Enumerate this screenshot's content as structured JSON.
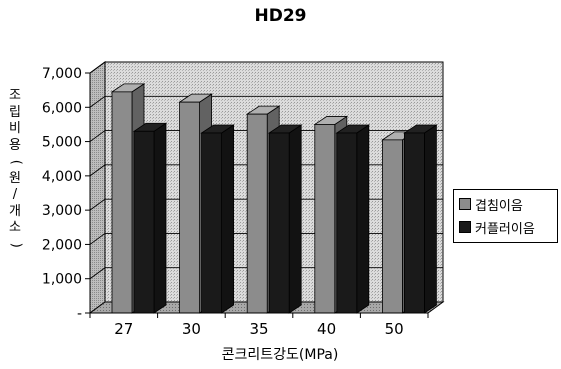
{
  "chart_data": {
    "type": "bar",
    "title": "HD29",
    "xlabel": "콘크리트강도(MPa)",
    "ylabel": "조립비용(원/개소)",
    "categories": [
      "27",
      "30",
      "35",
      "40",
      "50"
    ],
    "series": [
      {
        "name": "겹침이음",
        "values": [
          6450,
          6150,
          5800,
          5500,
          5050
        ],
        "color": "#8c8c8c"
      },
      {
        "name": "커플러이음",
        "values": [
          5300,
          5250,
          5250,
          5250,
          5250
        ],
        "color": "#1a1a1a"
      }
    ],
    "ylim": [
      0,
      7000
    ],
    "yticks": [
      0,
      1000,
      2000,
      3000,
      4000,
      5000,
      6000,
      7000
    ],
    "ytick_labels": [
      "-",
      "1,000",
      "2,000",
      "3,000",
      "4,000",
      "5,000",
      "6,000",
      "7,000"
    ],
    "grid": true,
    "legend_position": "right",
    "style": "3d-clustered-column"
  }
}
